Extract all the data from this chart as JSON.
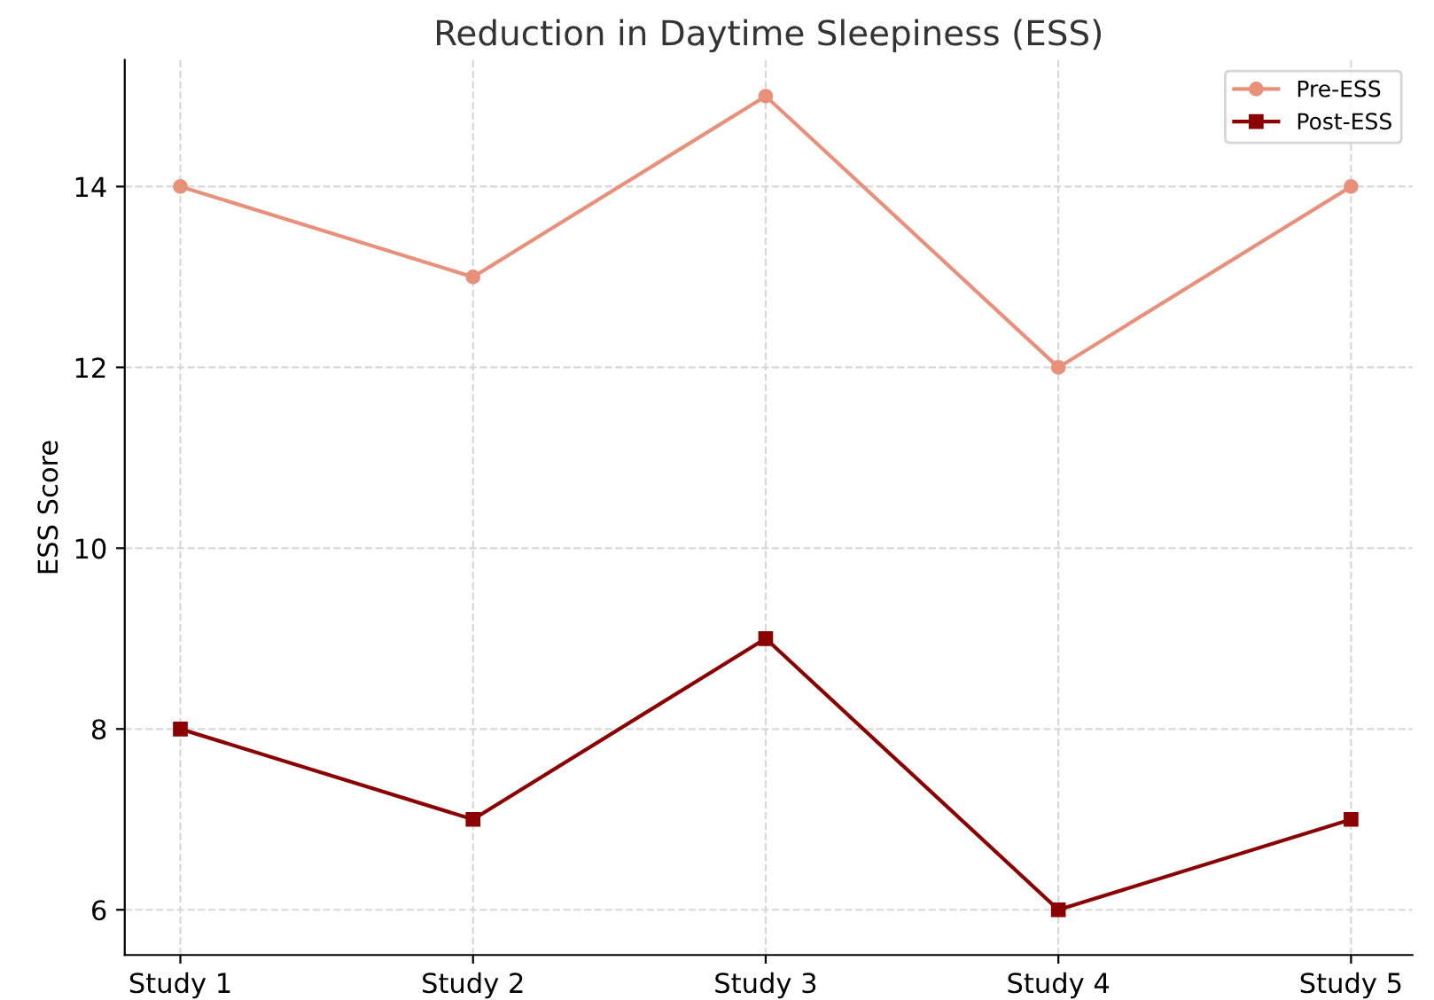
{
  "chart_data": {
    "type": "line",
    "title": "Reduction in Daytime Sleepiness (ESS)",
    "ylabel": "ESS Score",
    "categories": [
      "Study 1",
      "Study 2",
      "Study 3",
      "Study 4",
      "Study 5"
    ],
    "series": [
      {
        "name": "Pre-ESS",
        "color": "#e8907a",
        "marker": "circle",
        "values": [
          14,
          13,
          15,
          12,
          14
        ]
      },
      {
        "name": "Post-ESS",
        "color": "#8b0000",
        "marker": "square",
        "values": [
          8,
          7,
          9,
          6,
          7
        ]
      }
    ],
    "ylim": [
      5.5,
      15.4
    ],
    "yticks": [
      6,
      8,
      10,
      12,
      14
    ],
    "grid": true,
    "legend": "top right",
    "line_style": "solid"
  }
}
